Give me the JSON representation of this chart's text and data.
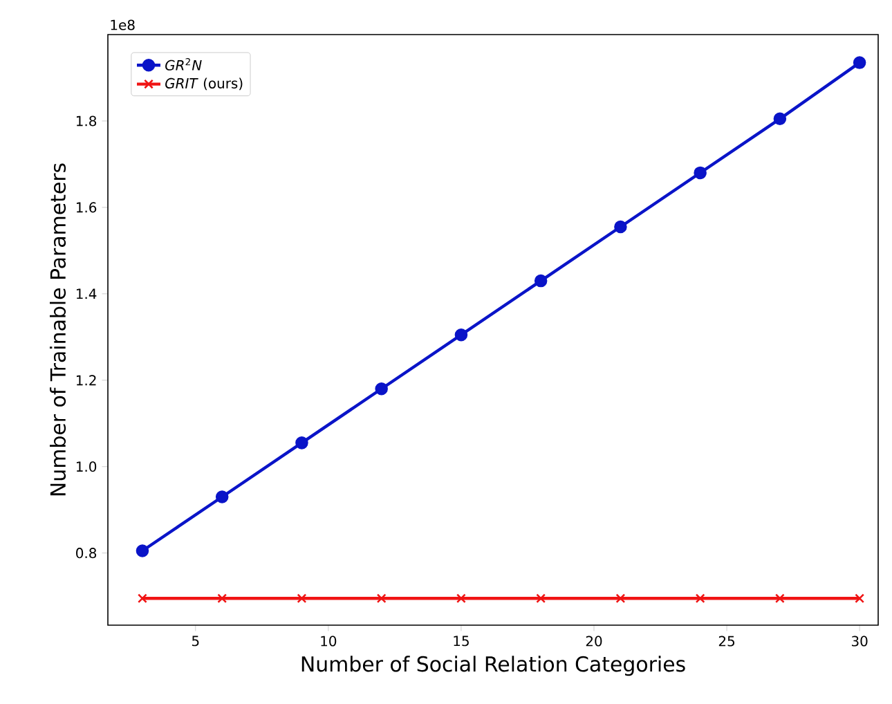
{
  "chart_data": {
    "type": "line",
    "xlabel": "Number of Social Relation Categories",
    "ylabel": "Number of Trainable Parameters",
    "x": [
      3,
      6,
      9,
      12,
      15,
      18,
      21,
      24,
      27,
      30
    ],
    "series": [
      {
        "name": "*GR*$^{2}$*N*",
        "color": "#0a14c8",
        "marker": "circle",
        "values": [
          0.805,
          0.93,
          1.055,
          1.18,
          1.305,
          1.43,
          1.555,
          1.68,
          1.805,
          1.935
        ]
      },
      {
        "name": "*GRIT* (ours)",
        "color": "#f01414",
        "marker": "cross",
        "values": [
          0.695,
          0.695,
          0.695,
          0.695,
          0.695,
          0.695,
          0.695,
          0.695,
          0.695,
          0.695
        ]
      }
    ],
    "xlim": [
      1.7,
      30.7
    ],
    "ylim": [
      0.633,
      2.0
    ],
    "xticks": [
      5,
      10,
      15,
      20,
      25,
      30
    ],
    "yticks": [
      0.8,
      {
        "value": 1.0,
        "label": "1.0"
      },
      1.2,
      1.4,
      1.6,
      1.8
    ],
    "annotations": [
      "1e8"
    ],
    "legend": "top left",
    "grid": false,
    "line_style": "solid"
  }
}
